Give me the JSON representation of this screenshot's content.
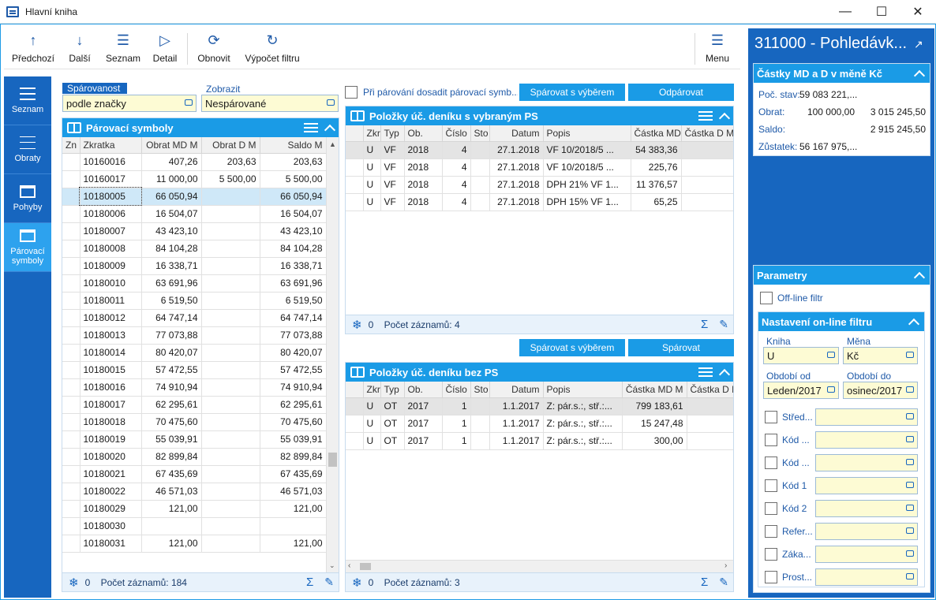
{
  "window": {
    "title": "Hlavní kniha"
  },
  "toolbar": {
    "prev": "Předchozí",
    "next": "Další",
    "list": "Seznam",
    "detail": "Detail",
    "refresh": "Obnovit",
    "filter_calc": "Výpočet filtru",
    "menu": "Menu"
  },
  "leftnav": {
    "items": [
      {
        "label": "Seznam"
      },
      {
        "label": "Obraty"
      },
      {
        "label": "Pohyby"
      },
      {
        "label": "Párovací symboly"
      }
    ]
  },
  "filters": {
    "sparovanost_label": "Spárovanost",
    "sparovanost_value": "podle značky",
    "zobrazit_label": "Zobrazit",
    "zobrazit_value": "Nespárované"
  },
  "symbols_panel": {
    "title": "Párovací symboly",
    "columns": [
      "Zn",
      "Zkratka",
      "Obrat MD M",
      "Obrat D M",
      "Saldo M"
    ],
    "rows": [
      [
        "",
        "10160016",
        "407,26",
        "203,63",
        "203,63"
      ],
      [
        "",
        "10160017",
        "11 000,00",
        "5 500,00",
        "5 500,00"
      ],
      [
        "",
        "10180005",
        "66 050,94",
        "",
        "66 050,94"
      ],
      [
        "",
        "10180006",
        "16 504,07",
        "",
        "16 504,07"
      ],
      [
        "",
        "10180007",
        "43 423,10",
        "",
        "43 423,10"
      ],
      [
        "",
        "10180008",
        "84 104,28",
        "",
        "84 104,28"
      ],
      [
        "",
        "10180009",
        "16 338,71",
        "",
        "16 338,71"
      ],
      [
        "",
        "10180010",
        "63 691,96",
        "",
        "63 691,96"
      ],
      [
        "",
        "10180011",
        "6 519,50",
        "",
        "6 519,50"
      ],
      [
        "",
        "10180012",
        "64 747,14",
        "",
        "64 747,14"
      ],
      [
        "",
        "10180013",
        "77 073,88",
        "",
        "77 073,88"
      ],
      [
        "",
        "10180014",
        "80 420,07",
        "",
        "80 420,07"
      ],
      [
        "",
        "10180015",
        "57 472,55",
        "",
        "57 472,55"
      ],
      [
        "",
        "10180016",
        "74 910,94",
        "",
        "74 910,94"
      ],
      [
        "",
        "10180017",
        "62 295,61",
        "",
        "62 295,61"
      ],
      [
        "",
        "10180018",
        "70 475,60",
        "",
        "70 475,60"
      ],
      [
        "",
        "10180019",
        "55 039,91",
        "",
        "55 039,91"
      ],
      [
        "",
        "10180020",
        "82 899,84",
        "",
        "82 899,84"
      ],
      [
        "",
        "10180021",
        "67 435,69",
        "",
        "67 435,69"
      ],
      [
        "",
        "10180022",
        "46 571,03",
        "",
        "46 571,03"
      ],
      [
        "",
        "10180029",
        "121,00",
        "",
        "121,00"
      ],
      [
        "",
        "10180030",
        "",
        "",
        ""
      ],
      [
        "",
        "10180031",
        "121,00",
        "",
        "121,00"
      ]
    ],
    "footer_count": "0",
    "footer_text": "Počet záznamů: 184"
  },
  "pairing": {
    "checkbox_label": "Při párování dosadit párovací symb...",
    "pair_with_select": "Spárovat s výběrem",
    "unpair": "Odpárovat",
    "pair_with_select_2": "Spárovat s výběrem",
    "pair": "Spárovat"
  },
  "with_ps_panel": {
    "title": "Položky úč. deníku s vybraným PS",
    "columns": [
      "Zkr",
      "Typ",
      "Ob.",
      "Číslo",
      "Sto",
      "Datum",
      "Popis",
      "Částka MD",
      "Částka D M"
    ],
    "rows": [
      [
        "U",
        "VF",
        "2018",
        "4",
        "",
        "27.1.2018",
        "VF 10/2018/5 ...",
        "54 383,36",
        ""
      ],
      [
        "U",
        "VF",
        "2018",
        "4",
        "",
        "27.1.2018",
        "VF 10/2018/5 ...",
        "225,76",
        ""
      ],
      [
        "U",
        "VF",
        "2018",
        "4",
        "",
        "27.1.2018",
        "DPH 21% VF 1...",
        "11 376,57",
        ""
      ],
      [
        "U",
        "VF",
        "2018",
        "4",
        "",
        "27.1.2018",
        "DPH 15% VF 1...",
        "65,25",
        ""
      ]
    ],
    "footer_count": "0",
    "footer_text": "Počet záznamů: 4"
  },
  "without_ps_panel": {
    "title": "Položky úč. deníku bez PS",
    "columns": [
      "Zkr",
      "Typ",
      "Ob.",
      "Číslo",
      "Sto",
      "Datum",
      "Popis",
      "Částka MD M",
      "Částka D M"
    ],
    "rows": [
      [
        "U",
        "OT",
        "2017",
        "1",
        "",
        "1.1.2017",
        "Z: pár.s.:, stř.:...",
        "799 183,61",
        ""
      ],
      [
        "U",
        "OT",
        "2017",
        "1",
        "",
        "1.1.2017",
        "Z: pár.s.:, stř.:...",
        "15 247,48",
        ""
      ],
      [
        "U",
        "OT",
        "2017",
        "1",
        "",
        "1.1.2017",
        "Z: pár.s.:, stř.:...",
        "300,00",
        ""
      ]
    ],
    "footer_count": "0",
    "footer_text": "Počet záznamů: 3"
  },
  "right": {
    "account_title": "311000 - Pohledávk...",
    "amounts_title": "Částky MD a D v měně Kč",
    "poc_stav_label": "Poč. stav:",
    "poc_stav_value": "59 083 221,...",
    "obrat_label": "Obrat:",
    "obrat_md": "100 000,00",
    "obrat_d": "3 015 245,50",
    "saldo_label": "Saldo:",
    "saldo_value": "2 915 245,50",
    "zustatek_label": "Zůstatek:",
    "zustatek_value": "56 167 975,...",
    "params_title": "Parametry",
    "offline_label": "Off-line filtr",
    "online_title": "Nastavení on-line filtru",
    "kniha_label": "Kniha",
    "kniha_value": "U",
    "mena_label": "Měna",
    "mena_value": "Kč",
    "obdobi_od_label": "Období od",
    "obdobi_od_value": "Leden/2017",
    "obdobi_do_label": "Období do",
    "obdobi_do_value": "osinec/2017",
    "filter_rows": [
      "Střed...",
      "Kód ...",
      "Kód ...",
      "Kód 1",
      "Kód 2",
      "Refer...",
      "Záka...",
      "Prost..."
    ]
  }
}
